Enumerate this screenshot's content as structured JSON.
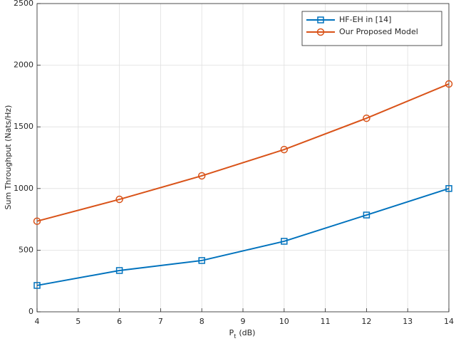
{
  "chart_data": {
    "type": "line",
    "xlabel": [
      "P",
      "t",
      "(dB)"
    ],
    "ylabel": "Sum Throughput (Nats/Hz)",
    "x": [
      4,
      6,
      8,
      10,
      12,
      14
    ],
    "series": [
      {
        "name": "HF-EH in [14]",
        "color": "#0072bd",
        "marker": "square",
        "values": [
          214,
          335,
          416,
          572,
          785,
          1000
        ]
      },
      {
        "name": "Our Proposed Model",
        "color": "#d95319",
        "marker": "circle",
        "values": [
          735,
          912,
          1103,
          1316,
          1570,
          1848
        ]
      }
    ],
    "xlim": [
      4,
      14
    ],
    "xticks": [
      4,
      5,
      6,
      7,
      8,
      9,
      10,
      11,
      12,
      13,
      14
    ],
    "ylim": [
      0,
      2500
    ],
    "yticks": [
      0,
      500,
      1000,
      1500,
      2000,
      2500
    ],
    "grid": true,
    "legend": "top-right"
  }
}
